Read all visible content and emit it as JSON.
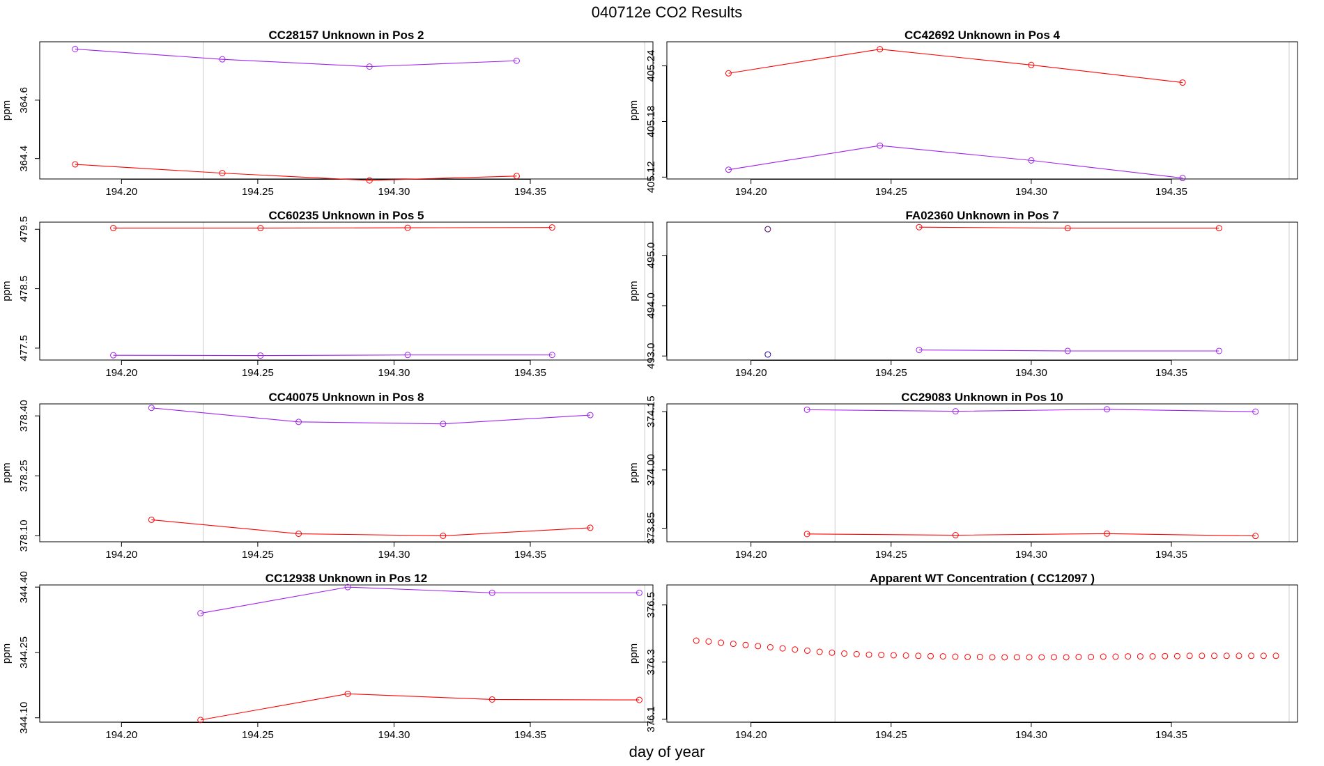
{
  "figure": {
    "title": "040712e  CO2 Results",
    "xlabel": "day of year"
  },
  "colors": {
    "series_a": "#ff0000",
    "series_b": "#a020f0",
    "reference_line": "#d3d3d3",
    "axis": "#000000",
    "single_point": "#00008b"
  },
  "chart_data": [
    {
      "type": "line",
      "title": "CC28157    Unknown in Pos 2",
      "ylabel": "ppm",
      "xlim": [
        194.17,
        194.395
      ],
      "ylim": [
        364.33,
        364.8
      ],
      "yticks": [
        364.4,
        364.6
      ],
      "ytick_labels": [
        "364.4",
        "364.6"
      ],
      "xticks": [
        194.2,
        194.25,
        194.3,
        194.35
      ],
      "xtick_labels": [
        "194.20",
        "194.25",
        "194.30",
        "194.35"
      ],
      "vlines": [
        194.23,
        194.392
      ],
      "series": [
        {
          "name": "red",
          "color": "#ff0000",
          "x": [
            194.183,
            194.237,
            194.291,
            194.345
          ],
          "y": [
            364.38,
            364.35,
            364.325,
            364.34
          ]
        },
        {
          "name": "purple",
          "color": "#a020f0",
          "x": [
            194.183,
            194.237,
            194.291,
            194.345
          ],
          "y": [
            364.775,
            364.74,
            364.715,
            364.735
          ]
        }
      ]
    },
    {
      "type": "line",
      "title": "CC42692    Unknown in Pos 4",
      "ylabel": "ppm",
      "xlim": [
        194.17,
        194.395
      ],
      "ylim": [
        405.118,
        405.266
      ],
      "yticks": [
        405.12,
        405.18,
        405.24
      ],
      "ytick_labels": [
        "405.12",
        "405.18",
        "405.24"
      ],
      "xticks": [
        194.2,
        194.25,
        194.3,
        194.35
      ],
      "xtick_labels": [
        "194.20",
        "194.25",
        "194.30",
        "194.35"
      ],
      "vlines": [
        194.23,
        194.392
      ],
      "series": [
        {
          "name": "red",
          "color": "#ff0000",
          "x": [
            194.192,
            194.246,
            194.3,
            194.354
          ],
          "y": [
            405.232,
            405.258,
            405.241,
            405.222
          ]
        },
        {
          "name": "purple",
          "color": "#a020f0",
          "x": [
            194.192,
            194.246,
            194.3,
            194.354
          ],
          "y": [
            405.128,
            405.154,
            405.138,
            405.119
          ]
        }
      ]
    },
    {
      "type": "line",
      "title": "CC60235    Unknown in Pos 5",
      "ylabel": "ppm",
      "xlim": [
        194.17,
        194.395
      ],
      "ylim": [
        477.3,
        479.62
      ],
      "yticks": [
        477.5,
        478.5,
        479.5
      ],
      "ytick_labels": [
        "477.5",
        "478.5",
        "479.5"
      ],
      "xticks": [
        194.2,
        194.25,
        194.3,
        194.35
      ],
      "xtick_labels": [
        "194.20",
        "194.25",
        "194.30",
        "194.35"
      ],
      "vlines": [
        194.23,
        194.392
      ],
      "series": [
        {
          "name": "red",
          "color": "#ff0000",
          "x": [
            194.197,
            194.251,
            194.305,
            194.358
          ],
          "y": [
            479.52,
            479.52,
            479.525,
            479.53
          ]
        },
        {
          "name": "purple",
          "color": "#a020f0",
          "x": [
            194.197,
            194.251,
            194.305,
            194.358
          ],
          "y": [
            477.38,
            477.375,
            477.385,
            477.385
          ]
        }
      ]
    },
    {
      "type": "line",
      "title": "FA02360    Unknown in Pos 7",
      "ylabel": "ppm",
      "xlim": [
        194.17,
        194.395
      ],
      "ylim": [
        492.92,
        495.66
      ],
      "yticks": [
        493.0,
        494.0,
        495.0
      ],
      "ytick_labels": [
        "493.0",
        "494.0",
        "495.0"
      ],
      "xticks": [
        194.2,
        194.25,
        194.3,
        194.35
      ],
      "xtick_labels": [
        "194.20",
        "194.25",
        "194.30",
        "194.35"
      ],
      "vlines": [
        194.23,
        194.392
      ],
      "series": [
        {
          "name": "red",
          "color": "#ff0000",
          "x": [
            194.206,
            194.26,
            194.313,
            194.367
          ],
          "y": [
            495.52,
            495.56,
            495.54,
            495.54
          ]
        },
        {
          "name": "purple",
          "color": "#a020f0",
          "x": [
            194.206,
            194.26,
            194.313,
            194.367
          ],
          "y": [
            493.03,
            493.12,
            493.1,
            493.1
          ]
        }
      ],
      "single_points": [
        0
      ]
    },
    {
      "type": "line",
      "title": "CC40075    Unknown in Pos 8",
      "ylabel": "ppm",
      "xlim": [
        194.17,
        194.395
      ],
      "ylim": [
        378.085,
        378.43
      ],
      "yticks": [
        378.1,
        378.25,
        378.4
      ],
      "ytick_labels": [
        "378.10",
        "378.25",
        "378.40"
      ],
      "xticks": [
        194.2,
        194.25,
        194.3,
        194.35
      ],
      "xtick_labels": [
        "194.20",
        "194.25",
        "194.30",
        "194.35"
      ],
      "vlines": [
        194.23,
        194.392
      ],
      "series": [
        {
          "name": "red",
          "color": "#ff0000",
          "x": [
            194.211,
            194.265,
            194.318,
            194.372
          ],
          "y": [
            378.14,
            378.105,
            378.1,
            378.12
          ]
        },
        {
          "name": "purple",
          "color": "#a020f0",
          "x": [
            194.211,
            194.265,
            194.318,
            194.372
          ],
          "y": [
            378.42,
            378.385,
            378.38,
            378.402
          ]
        }
      ]
    },
    {
      "type": "line",
      "title": "CC29083    Unknown in Pos 10",
      "ylabel": "ppm",
      "xlim": [
        194.17,
        194.395
      ],
      "ylim": [
        373.815,
        374.17
      ],
      "yticks": [
        373.85,
        374.0,
        374.15
      ],
      "ytick_labels": [
        "373.85",
        "374.00",
        "374.15"
      ],
      "xticks": [
        194.2,
        194.25,
        194.3,
        194.35
      ],
      "xtick_labels": [
        "194.20",
        "194.25",
        "194.30",
        "194.35"
      ],
      "vlines": [
        194.23,
        194.392
      ],
      "series": [
        {
          "name": "red",
          "color": "#ff0000",
          "x": [
            194.22,
            194.273,
            194.327,
            194.38
          ],
          "y": [
            373.835,
            373.832,
            373.836,
            373.83
          ]
        },
        {
          "name": "purple",
          "color": "#a020f0",
          "x": [
            194.22,
            194.273,
            194.327,
            194.38
          ],
          "y": [
            374.155,
            374.151,
            374.156,
            374.15
          ]
        }
      ]
    },
    {
      "type": "line",
      "title": "CC12938    Unknown in Pos 12",
      "ylabel": "ppm",
      "xlim": [
        194.17,
        194.395
      ],
      "ylim": [
        344.09,
        344.405
      ],
      "yticks": [
        344.1,
        344.25,
        344.4
      ],
      "ytick_labels": [
        "344.10",
        "344.25",
        "344.40"
      ],
      "xticks": [
        194.2,
        194.25,
        194.3,
        194.35
      ],
      "xtick_labels": [
        "194.20",
        "194.25",
        "194.30",
        "194.35"
      ],
      "vlines": [
        194.23,
        194.392
      ],
      "series": [
        {
          "name": "red",
          "color": "#ff0000",
          "x": [
            194.229,
            194.283,
            194.336,
            194.39
          ],
          "y": [
            344.095,
            344.155,
            344.142,
            344.141
          ]
        },
        {
          "name": "purple",
          "color": "#a020f0",
          "x": [
            194.229,
            194.283,
            194.336,
            194.39
          ],
          "y": [
            344.34,
            344.4,
            344.387,
            344.387
          ]
        }
      ]
    },
    {
      "type": "scatter",
      "title": "Apparent WT Concentration ( CC12097 )",
      "ylabel": "ppm",
      "xlim": [
        194.17,
        194.395
      ],
      "ylim": [
        376.09,
        376.57
      ],
      "yticks": [
        376.1,
        376.3,
        376.5
      ],
      "ytick_labels": [
        "376.1",
        "376.3",
        "376.5"
      ],
      "xticks": [
        194.2,
        194.25,
        194.3,
        194.35
      ],
      "xtick_labels": [
        "194.20",
        "194.25",
        "194.30",
        "194.35"
      ],
      "vlines": [
        194.23,
        194.392
      ],
      "series": [
        {
          "name": "red",
          "color": "#ff0000",
          "x": [
            194.1805,
            194.1849,
            194.1893,
            194.1937,
            194.1981,
            194.2025,
            194.2069,
            194.2113,
            194.2157,
            194.2201,
            194.2245,
            194.2289,
            194.2333,
            194.2377,
            194.2421,
            194.2465,
            194.2509,
            194.2553,
            194.2597,
            194.2641,
            194.2685,
            194.2729,
            194.2773,
            194.2817,
            194.2861,
            194.2905,
            194.2949,
            194.2993,
            194.3037,
            194.3081,
            194.3125,
            194.3169,
            194.3213,
            194.3257,
            194.3301,
            194.3345,
            194.3389,
            194.3433,
            194.3477,
            194.3521,
            194.3565,
            194.3609,
            194.3653,
            194.3697,
            194.3741,
            194.3785,
            194.3829,
            194.3873
          ],
          "y": [
            376.375,
            376.372,
            376.368,
            376.364,
            376.36,
            376.356,
            376.352,
            376.348,
            376.344,
            376.34,
            376.336,
            376.333,
            376.33,
            376.328,
            376.326,
            376.325,
            376.324,
            376.323,
            376.322,
            376.321,
            376.32,
            376.319,
            376.318,
            376.318,
            376.317,
            376.317,
            376.317,
            376.317,
            376.317,
            376.317,
            376.317,
            376.318,
            376.318,
            376.319,
            376.319,
            376.32,
            376.32,
            376.32,
            376.321,
            376.321,
            376.322,
            376.322,
            376.322,
            376.322,
            376.322,
            376.322,
            376.322,
            376.322
          ]
        }
      ]
    }
  ]
}
